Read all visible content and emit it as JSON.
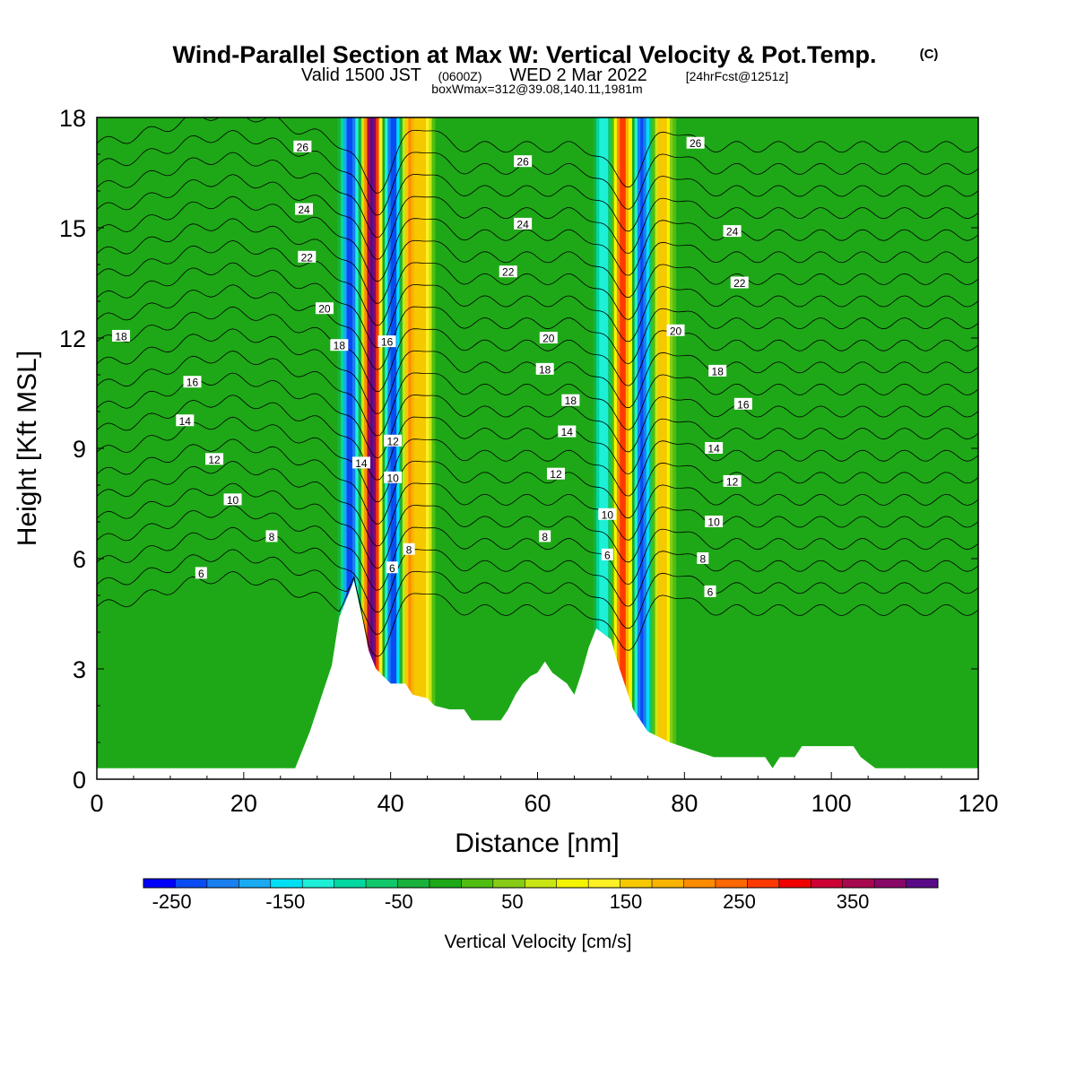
{
  "title": {
    "main": "Wind-Parallel Section at Max W: Vertical Velocity & Pot.Temp.",
    "copyright": "(C)",
    "line2_a": "Valid 1500 JST",
    "line2_b": "(0600Z)",
    "line2_c": "WED 2 Mar 2022",
    "line2_d": "[24hrFcst@1251z]",
    "line3": "boxWmax=312@39.08,140.11,1981m"
  },
  "chart_data": {
    "type": "heatmap",
    "xlabel": "Distance [nm]",
    "ylabel": "Height [Kft MSL]",
    "xlim": [
      0,
      120
    ],
    "ylim": [
      0,
      18
    ],
    "xticks": [
      "0",
      "20",
      "40",
      "60",
      "80",
      "100",
      "120"
    ],
    "yticks": [
      "0",
      "3",
      "6",
      "9",
      "12",
      "15",
      "18"
    ],
    "colorbar": {
      "title": "Vertical Velocity [cm/s]",
      "range": [
        -275,
        425
      ],
      "step": 25,
      "labels": [
        "-250",
        "-150",
        "-50",
        "50",
        "150",
        "250",
        "350"
      ],
      "colors": [
        "#0000ff",
        "#0a4cf4",
        "#1a7ff0",
        "#1aaaf2",
        "#00e0f4",
        "#1ef0d8",
        "#00d8a0",
        "#12c76a",
        "#19b13c",
        "#1ea817",
        "#4fbe10",
        "#86cc16",
        "#c8e614",
        "#f4f400",
        "#fff023",
        "#f5c800",
        "#f9b400",
        "#ff8c00",
        "#ff6800",
        "#ff3a00",
        "#f00000",
        "#cc0033",
        "#a8084f",
        "#880868",
        "#5a0a88"
      ]
    },
    "background_velocity_cm_s": -40,
    "velocity_bands": [
      {
        "center_nm": 34.5,
        "peak_cm_s": -250
      },
      {
        "center_nm": 37.5,
        "peak_cm_s": 350
      },
      {
        "center_nm": 40.3,
        "peak_cm_s": -250
      },
      {
        "center_nm": 42.6,
        "peak_cm_s": 150
      },
      {
        "center_nm": 44.5,
        "peak_cm_s": 100
      },
      {
        "center_nm": 69.0,
        "peak_cm_s": -150
      },
      {
        "center_nm": 71.6,
        "peak_cm_s": 225
      },
      {
        "center_nm": 74.2,
        "peak_cm_s": -250
      },
      {
        "center_nm": 77.0,
        "peak_cm_s": 125
      }
    ],
    "terrain_kft": [
      [
        0,
        0.3
      ],
      [
        27,
        0.3
      ],
      [
        28,
        0.8
      ],
      [
        29,
        1.3
      ],
      [
        30,
        1.9
      ],
      [
        31,
        2.5
      ],
      [
        32,
        3.1
      ],
      [
        33,
        4.4
      ],
      [
        35,
        5.4
      ],
      [
        36,
        4.5
      ],
      [
        37,
        3.5
      ],
      [
        38,
        3.0
      ],
      [
        39,
        2.8
      ],
      [
        40,
        2.6
      ],
      [
        42,
        2.6
      ],
      [
        43,
        2.3
      ],
      [
        45,
        2.2
      ],
      [
        46,
        2.0
      ],
      [
        48,
        1.9
      ],
      [
        50,
        1.9
      ],
      [
        51,
        1.6
      ],
      [
        55,
        1.6
      ],
      [
        56,
        1.9
      ],
      [
        57,
        2.3
      ],
      [
        58,
        2.6
      ],
      [
        59,
        2.8
      ],
      [
        60,
        2.9
      ],
      [
        61,
        3.2
      ],
      [
        62,
        2.9
      ],
      [
        64,
        2.6
      ],
      [
        65,
        2.3
      ],
      [
        66,
        2.9
      ],
      [
        67,
        3.6
      ],
      [
        68,
        4.1
      ],
      [
        70,
        3.8
      ],
      [
        71,
        3.1
      ],
      [
        72,
        2.5
      ],
      [
        73,
        1.9
      ],
      [
        74,
        1.6
      ],
      [
        75,
        1.3
      ],
      [
        78,
        1.0
      ],
      [
        81,
        0.8
      ],
      [
        84,
        0.6
      ],
      [
        91,
        0.6
      ],
      [
        92,
        0.3
      ],
      [
        93,
        0.6
      ],
      [
        95,
        0.6
      ],
      [
        96,
        0.9
      ],
      [
        103,
        0.9
      ],
      [
        104,
        0.6
      ],
      [
        106,
        0.3
      ],
      [
        120,
        0.3
      ]
    ],
    "theta_contours": {
      "levels_celsius": [
        6,
        7,
        8,
        9,
        10,
        11,
        12,
        13,
        14,
        15,
        16,
        17,
        18,
        19,
        20,
        21,
        22,
        23,
        24,
        25,
        26,
        27
      ],
      "labeled": [
        "6",
        "8",
        "10",
        "12",
        "14",
        "16",
        "18",
        "20",
        "22",
        "24",
        "26"
      ]
    },
    "contour_labels": [
      {
        "text": "26",
        "x": 28,
        "y": 17.2
      },
      {
        "text": "24",
        "x": 28.2,
        "y": 15.5
      },
      {
        "text": "22",
        "x": 28.6,
        "y": 14.2
      },
      {
        "text": "20",
        "x": 31,
        "y": 12.8
      },
      {
        "text": "18",
        "x": 3.3,
        "y": 12.05
      },
      {
        "text": "18",
        "x": 33,
        "y": 11.8
      },
      {
        "text": "16",
        "x": 13,
        "y": 10.8
      },
      {
        "text": "16",
        "x": 39.5,
        "y": 11.9
      },
      {
        "text": "14",
        "x": 12,
        "y": 9.75
      },
      {
        "text": "14",
        "x": 36,
        "y": 8.6
      },
      {
        "text": "12",
        "x": 16,
        "y": 8.7
      },
      {
        "text": "12",
        "x": 40.3,
        "y": 9.2
      },
      {
        "text": "10",
        "x": 18.5,
        "y": 7.6
      },
      {
        "text": "10",
        "x": 40.3,
        "y": 8.2
      },
      {
        "text": "8",
        "x": 23.8,
        "y": 6.6
      },
      {
        "text": "8",
        "x": 42.5,
        "y": 6.25
      },
      {
        "text": "6",
        "x": 14.2,
        "y": 5.6
      },
      {
        "text": "6",
        "x": 40.2,
        "y": 5.75
      },
      {
        "text": "26",
        "x": 58,
        "y": 16.8
      },
      {
        "text": "24",
        "x": 58,
        "y": 15.1
      },
      {
        "text": "22",
        "x": 56,
        "y": 13.8
      },
      {
        "text": "20",
        "x": 61.5,
        "y": 12.0
      },
      {
        "text": "18",
        "x": 61,
        "y": 11.15
      },
      {
        "text": "18",
        "x": 64.5,
        "y": 10.3
      },
      {
        "text": "14",
        "x": 64,
        "y": 9.45
      },
      {
        "text": "12",
        "x": 62.5,
        "y": 8.3
      },
      {
        "text": "8",
        "x": 61,
        "y": 6.6
      },
      {
        "text": "10",
        "x": 69.5,
        "y": 7.2
      },
      {
        "text": "6",
        "x": 69.5,
        "y": 6.1
      },
      {
        "text": "26",
        "x": 81.5,
        "y": 17.3
      },
      {
        "text": "24",
        "x": 86.5,
        "y": 14.9
      },
      {
        "text": "22",
        "x": 87.5,
        "y": 13.5
      },
      {
        "text": "20",
        "x": 78.8,
        "y": 12.2
      },
      {
        "text": "18",
        "x": 84.5,
        "y": 11.1
      },
      {
        "text": "16",
        "x": 88,
        "y": 10.2
      },
      {
        "text": "14",
        "x": 84,
        "y": 9.0
      },
      {
        "text": "12",
        "x": 86.5,
        "y": 8.1
      },
      {
        "text": "10",
        "x": 84,
        "y": 7.0
      },
      {
        "text": "8",
        "x": 82.5,
        "y": 6.0
      },
      {
        "text": "6",
        "x": 83.5,
        "y": 5.1
      }
    ]
  }
}
